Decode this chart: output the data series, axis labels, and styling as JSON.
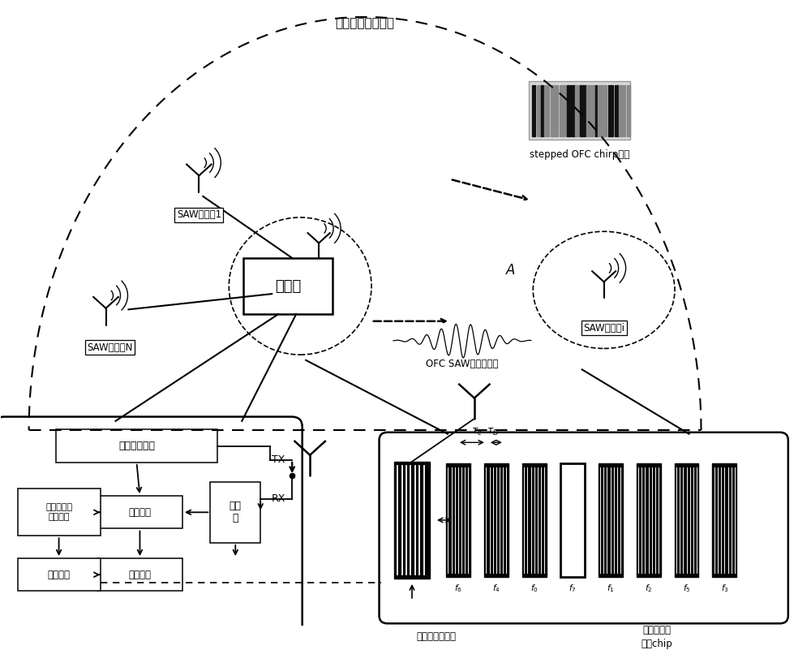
{
  "bg_color": "#ffffff",
  "main_label": "复杂电磁干扰环境",
  "sensor1_label": "SAW传感器1",
  "sensorN_label": "SAW传感器N",
  "sensori_label": "SAW传感器i",
  "reader_label": "阅读器",
  "tx_label": "TX",
  "rx_label": "RX",
  "signal_label": "stepped OFC chirp信号",
  "echo_label": "OFC SAW传感器回波",
  "A_label": "A",
  "upconv_label": "上调频及编码",
  "downconv_label": "下调\n频",
  "correlation_label": "相关运算",
  "multiuser_label": "多用户检测\n（解码）",
  "freqest_label": "频偏估计",
  "tempdet_label": "温度检测",
  "idt_label": "单向叉指换能器",
  "chip_label": "频率正交反\n射栅chip",
  "freq_labels": [
    "f_6",
    "f_4",
    "f_0",
    "f_7",
    "f_1",
    "f_2",
    "f_5",
    "f_3"
  ]
}
